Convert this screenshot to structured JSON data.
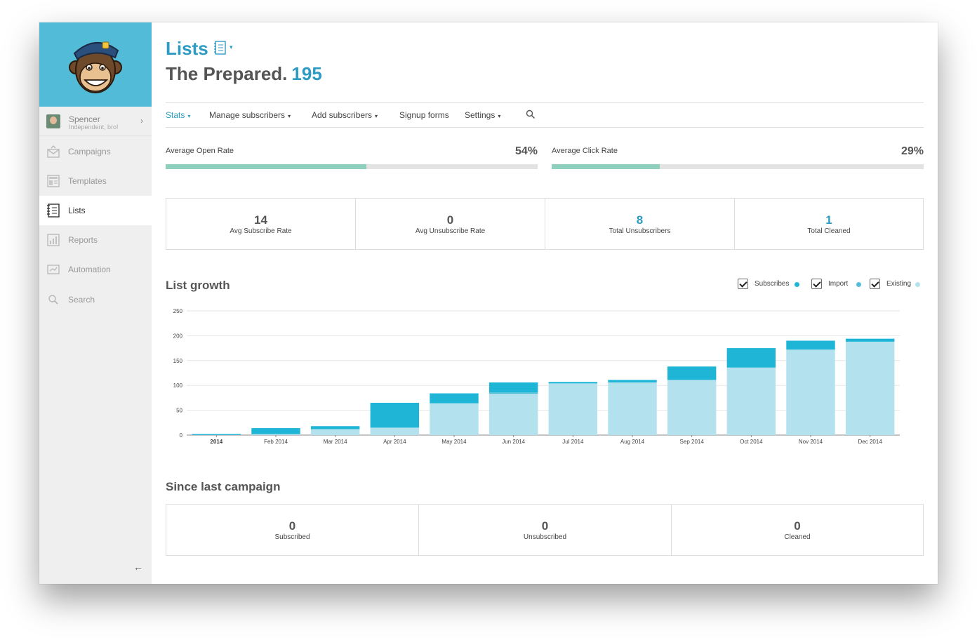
{
  "sidebar": {
    "user": {
      "name": "Spencer",
      "subtitle": "Independent, bro!"
    },
    "items": [
      {
        "label": "Campaigns",
        "icon": "campaigns-icon"
      },
      {
        "label": "Templates",
        "icon": "templates-icon"
      },
      {
        "label": "Lists",
        "icon": "lists-icon",
        "active": true
      },
      {
        "label": "Reports",
        "icon": "reports-icon"
      },
      {
        "label": "Automation",
        "icon": "automation-icon"
      },
      {
        "label": "Search",
        "icon": "search-icon"
      }
    ],
    "collapse_glyph": "←"
  },
  "header": {
    "title": "Lists",
    "list_name": "The Prepared.",
    "list_count": "195"
  },
  "tabs": [
    {
      "label": "Stats",
      "active": true,
      "caret": true
    },
    {
      "label": "Manage subscribers",
      "caret": true
    },
    {
      "label": "Add subscribers",
      "caret": true
    },
    {
      "label": "Signup forms",
      "caret": false
    },
    {
      "label": "Settings",
      "caret": true
    }
  ],
  "rates": {
    "open": {
      "label": "Average Open Rate",
      "value": "54%",
      "fraction": 0.54
    },
    "click": {
      "label": "Average Click Rate",
      "value": "29%",
      "fraction": 0.29
    }
  },
  "stats": [
    {
      "value": "14",
      "label": "Avg Subscribe Rate",
      "highlight": false
    },
    {
      "value": "0",
      "label": "Avg Unsubscribe Rate",
      "highlight": false
    },
    {
      "value": "8",
      "label": "Total Unsubscribers",
      "highlight": true
    },
    {
      "value": "1",
      "label": "Total Cleaned",
      "highlight": true
    }
  ],
  "list_growth": {
    "title": "List growth",
    "legend": [
      {
        "label": "Subscribes",
        "color": "#1fb5d6"
      },
      {
        "label": "Import",
        "color": "#55bfd9"
      },
      {
        "label": "Existing",
        "color": "#b3e2ee"
      }
    ]
  },
  "chart_data": {
    "type": "bar",
    "stacked": true,
    "categories": [
      "2014",
      "Feb 2014",
      "Mar 2014",
      "Apr 2014",
      "May 2014",
      "Jun 2014",
      "Jul 2014",
      "Aug 2014",
      "Sep 2014",
      "Oct 2014",
      "Nov 2014",
      "Dec 2014"
    ],
    "series": [
      {
        "name": "Existing",
        "values": [
          0,
          2,
          12,
          15,
          64,
          83,
          104,
          106,
          111,
          136,
          172,
          188
        ]
      },
      {
        "name": "Import",
        "values": [
          0,
          0,
          0,
          0,
          0,
          3,
          0,
          0,
          0,
          0,
          0,
          0
        ]
      },
      {
        "name": "Subscribes",
        "values": [
          2,
          12,
          6,
          50,
          20,
          20,
          3,
          5,
          27,
          39,
          18,
          6
        ]
      }
    ],
    "ylim": [
      0,
      250
    ],
    "yticks": [
      0,
      50,
      100,
      150,
      200,
      250
    ],
    "grid": true,
    "colors": {
      "Existing": "#b3e2ee",
      "Import": "#55bfd9",
      "Subscribes": "#1fb5d6"
    }
  },
  "since_last": {
    "title": "Since last campaign",
    "items": [
      {
        "value": "0",
        "label": "Subscribed"
      },
      {
        "value": "0",
        "label": "Unsubscribed"
      },
      {
        "value": "0",
        "label": "Cleaned"
      }
    ]
  }
}
